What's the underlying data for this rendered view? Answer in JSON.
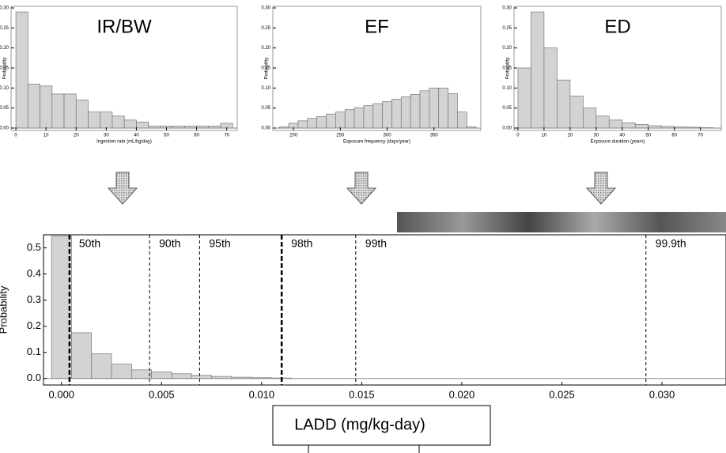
{
  "chart_data": [
    {
      "type": "histogram",
      "title": "IR/BW",
      "xlabel": "Ingestion rate (mL/kg/day)",
      "ylabel": "Probability",
      "color": "#d3d3d3",
      "bins": [
        0,
        4,
        8,
        12,
        16,
        20,
        24,
        28,
        32,
        36,
        40,
        44,
        48,
        52,
        56,
        60,
        64,
        68,
        72
      ],
      "values": [
        0.29,
        0.11,
        0.105,
        0.085,
        0.085,
        0.07,
        0.04,
        0.04,
        0.03,
        0.02,
        0.015,
        0.005,
        0.005,
        0.005,
        0.005,
        0.005,
        0.005,
        0.012
      ],
      "xlim": [
        -1.6,
        73.5
      ],
      "xticks": [
        0,
        10,
        20,
        30,
        40,
        50,
        60,
        70
      ],
      "ylim": [
        -0.006,
        0.304
      ],
      "yticks": [
        {
          "value": 0,
          "label": "0.00"
        },
        {
          "value": 0.05,
          "label": "0.05"
        },
        {
          "value": 0.1,
          "label": "0.10"
        },
        {
          "value": 0.15,
          "label": "0.15"
        },
        {
          "value": 0.2,
          "label": "0.20"
        },
        {
          "value": 0.25,
          "label": "0.25"
        },
        {
          "value": 0.3,
          "label": "0.30"
        }
      ]
    },
    {
      "type": "histogram",
      "title": "EF",
      "xlabel": "Exposure frequency (days/year)",
      "ylabel": "Probability",
      "color": "#d3d3d3",
      "bins": [
        185,
        195,
        205,
        215,
        225,
        235,
        245,
        255,
        265,
        275,
        285,
        295,
        305,
        315,
        325,
        335,
        345,
        355,
        365,
        375,
        385,
        395
      ],
      "values": [
        0.003,
        0.012,
        0.018,
        0.024,
        0.029,
        0.035,
        0.04,
        0.046,
        0.051,
        0.056,
        0.061,
        0.066,
        0.072,
        0.078,
        0.084,
        0.093,
        0.1,
        0.1,
        0.086,
        0.04,
        0.003
      ],
      "xlim": [
        178,
        400
      ],
      "xticks": [
        200,
        250,
        300,
        350
      ],
      "ylim": [
        -0.006,
        0.304
      ],
      "yticks": [
        {
          "value": 0,
          "label": "0.00"
        },
        {
          "value": 0.05,
          "label": "0.05"
        },
        {
          "value": 0.1,
          "label": "0.10"
        },
        {
          "value": 0.15,
          "label": "0.15"
        },
        {
          "value": 0.2,
          "label": "0.20"
        },
        {
          "value": 0.25,
          "label": "0.25"
        },
        {
          "value": 0.3,
          "label": "0.30"
        }
      ]
    },
    {
      "type": "histogram",
      "title": "ED",
      "xlabel": "Exposure duration (years)",
      "ylabel": "Probability",
      "color": "#d3d3d3",
      "bins": [
        0,
        5,
        10,
        15,
        20,
        25,
        30,
        35,
        40,
        45,
        50,
        55,
        60,
        65,
        70,
        75
      ],
      "values": [
        0.15,
        0.29,
        0.2,
        0.12,
        0.08,
        0.05,
        0.03,
        0.02,
        0.013,
        0.009,
        0.006,
        0.004,
        0.003,
        0.002,
        0.001
      ],
      "xlim": [
        -1.5,
        78
      ],
      "xticks": [
        0,
        10,
        20,
        30,
        40,
        50,
        60,
        70
      ],
      "ylim": [
        -0.006,
        0.304
      ],
      "yticks": [
        {
          "value": 0,
          "label": "0.00"
        },
        {
          "value": 0.05,
          "label": "0.05"
        },
        {
          "value": 0.1,
          "label": "0.10"
        },
        {
          "value": 0.15,
          "label": "0.15"
        },
        {
          "value": 0.2,
          "label": "0.20"
        },
        {
          "value": 0.25,
          "label": "0.25"
        },
        {
          "value": 0.3,
          "label": "0.30"
        }
      ]
    },
    {
      "type": "histogram",
      "xlabel": "LADD (mg/kg-day)",
      "ylabel": "Probability",
      "color": "#d3d3d3",
      "bins": [
        -0.0005,
        0.0005,
        0.0015,
        0.0025,
        0.0035,
        0.0045,
        0.0055,
        0.0065,
        0.0075,
        0.0085,
        0.0095,
        0.0105,
        0.0115
      ],
      "values": [
        0.545,
        0.175,
        0.095,
        0.055,
        0.033,
        0.025,
        0.018,
        0.012,
        0.008,
        0.005,
        0.003,
        0.002
      ],
      "xlim": [
        -0.0009,
        0.0332
      ],
      "xticks": [
        {
          "value": 0,
          "label": "0.000"
        },
        {
          "value": 0.005,
          "label": "0.005"
        },
        {
          "value": 0.01,
          "label": "0.010"
        },
        {
          "value": 0.015,
          "label": "0.015"
        },
        {
          "value": 0.02,
          "label": "0.020"
        },
        {
          "value": 0.025,
          "label": "0.025"
        },
        {
          "value": 0.03,
          "label": "0.030"
        }
      ],
      "ylim": [
        -0.025,
        0.55
      ],
      "yticks": [
        {
          "value": 0,
          "label": "0.0"
        },
        0.1,
        0.2,
        0.3,
        0.4,
        0.5
      ],
      "percentiles": [
        {
          "label": "50th",
          "x": 0.0004,
          "bold": true
        },
        {
          "label": "90th",
          "x": 0.0044,
          "bold": false
        },
        {
          "label": "95th",
          "x": 0.0069,
          "bold": false
        },
        {
          "label": "98th",
          "x": 0.011,
          "bold": true
        },
        {
          "label": "99th",
          "x": 0.0147,
          "bold": false
        },
        {
          "label": "99.9th",
          "x": 0.0292,
          "bold": false
        }
      ]
    }
  ]
}
